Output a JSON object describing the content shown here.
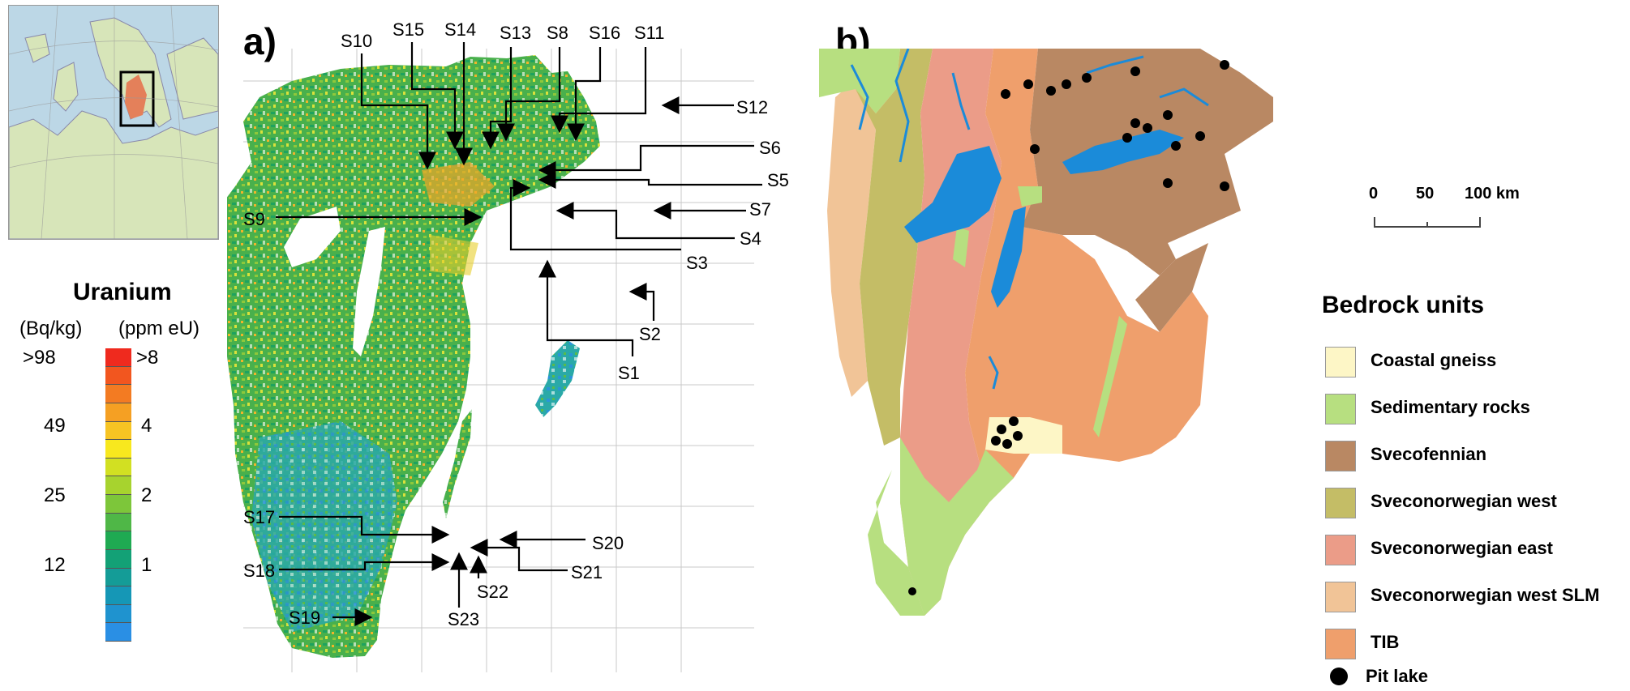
{
  "panels": {
    "a": "a)",
    "b": "b)"
  },
  "uranium_legend": {
    "title": "Uranium",
    "unit_left": "(Bq/kg)",
    "unit_right": "(ppm eU)",
    "ticks_left": [
      ">98",
      "49",
      "25",
      "12"
    ],
    "ticks_right": [
      ">8",
      "4",
      "2",
      "1"
    ],
    "colors": [
      "#ef2a1e",
      "#f2561f",
      "#f37b22",
      "#f5a023",
      "#f7c423",
      "#f8e81e",
      "#d2e022",
      "#a7d32e",
      "#7dc63a",
      "#4fb747",
      "#1faa52",
      "#13a176",
      "#149c97",
      "#1597b6",
      "#1f93cf",
      "#2a8fe4"
    ]
  },
  "stations": [
    "S1",
    "S2",
    "S3",
    "S4",
    "S5",
    "S6",
    "S7",
    "S8",
    "S9",
    "S10",
    "S11",
    "S12",
    "S13",
    "S14",
    "S15",
    "S16",
    "S17",
    "S18",
    "S19",
    "S20",
    "S21",
    "S22",
    "S23"
  ],
  "bedrock_legend": {
    "title": "Bedrock units",
    "items": [
      {
        "label": "Coastal gneiss",
        "color": "#fdf6c6"
      },
      {
        "label": "Sedimentary rocks",
        "color": "#b7df80"
      },
      {
        "label": "Svecofennian",
        "color": "#b98863"
      },
      {
        "label": "Sveconorwegian west",
        "color": "#c4bd66"
      },
      {
        "label": "Sveconorwegian east",
        "color": "#eb9c88"
      },
      {
        "label": "Sveconorwegian west SLM",
        "color": "#f1c497"
      },
      {
        "label": "TIB",
        "color": "#ef9f6c"
      }
    ],
    "pit_lake_label": "Pit lake"
  },
  "scale_bar": {
    "labels": [
      "0",
      "50",
      "100 km"
    ]
  },
  "colors": {
    "water": "#1b8bd9",
    "ocean_inset": "#bcd7e6",
    "land_inset": "#d7e5b9",
    "highlight": "#e4805a"
  }
}
